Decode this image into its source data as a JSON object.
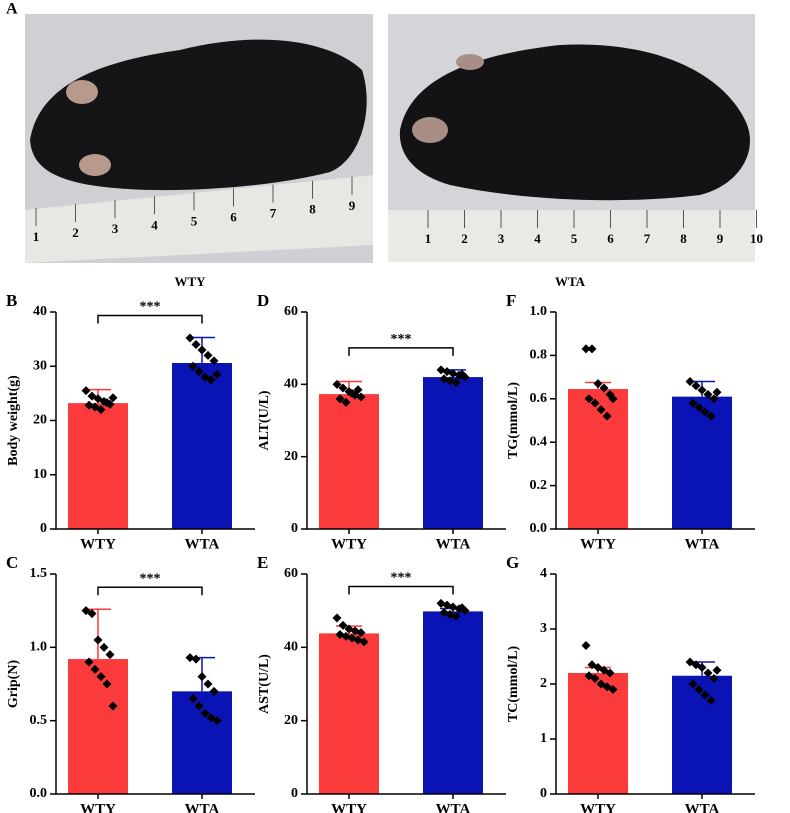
{
  "panel_a": {
    "label": "A",
    "photos": [
      {
        "caption": "WTY",
        "ruler": [
          "1",
          "2",
          "3",
          "4",
          "5",
          "6",
          "7",
          "8",
          "9"
        ]
      },
      {
        "caption": "WTA",
        "ruler": [
          "1",
          "2",
          "3",
          "4",
          "5",
          "6",
          "7",
          "8",
          "9",
          "10"
        ]
      }
    ]
  },
  "chart_data": [
    {
      "type": "bar",
      "label": "B",
      "ylabel": "Body weight(g)",
      "categories": [
        "WTY",
        "WTA"
      ],
      "values": [
        23.2,
        30.6
      ],
      "errors": [
        2.5,
        4.7
      ],
      "colors": [
        "#fb3a3c",
        "#0a14b4"
      ],
      "points": [
        [
          25.5,
          24.5,
          24,
          23.5,
          23,
          22.8,
          22.5,
          22,
          23.3,
          24.2
        ],
        [
          35.2,
          34,
          33,
          32,
          31,
          30,
          29,
          28,
          27.5,
          28.5
        ]
      ],
      "significance": "***",
      "ylim": [
        0,
        40
      ],
      "yticks": [
        0,
        10,
        20,
        30,
        40
      ]
    },
    {
      "type": "bar",
      "label": "D",
      "ylabel": "ALT(U/L)",
      "categories": [
        "WTY",
        "WTA"
      ],
      "values": [
        37.3,
        42
      ],
      "errors": [
        3.5,
        2
      ],
      "colors": [
        "#fb3a3c",
        "#0a14b4"
      ],
      "points": [
        [
          40,
          39,
          38,
          37,
          36.5,
          36,
          35,
          37.5,
          38.5
        ],
        [
          44,
          43.5,
          43,
          42.5,
          42,
          41.5,
          41,
          40.5,
          42.8
        ]
      ],
      "significance": "***",
      "ylim": [
        0,
        60
      ],
      "yticks": [
        0,
        20,
        40,
        60
      ]
    },
    {
      "type": "bar",
      "label": "F",
      "ylabel": "TG(mmol/L)",
      "categories": [
        "WTY",
        "WTA"
      ],
      "values": [
        0.645,
        0.61
      ],
      "errors": [
        0.03,
        0.07
      ],
      "colors": [
        "#fb3a3c",
        "#0a14b4"
      ],
      "points": [
        [
          0.83,
          0.83,
          0.67,
          0.65,
          0.62,
          0.6,
          0.58,
          0.55,
          0.52,
          0.6
        ],
        [
          0.68,
          0.66,
          0.64,
          0.62,
          0.6,
          0.58,
          0.56,
          0.54,
          0.52,
          0.63
        ]
      ],
      "ylim": [
        0,
        1
      ],
      "yticks": [
        {
          "value": 0,
          "label": "0.0"
        },
        0.2,
        0.4,
        0.6,
        0.8,
        {
          "value": 1,
          "label": "1.0"
        }
      ]
    },
    {
      "type": "bar",
      "label": "C",
      "ylabel": "Grip(N)",
      "categories": [
        "WTY",
        "WTA"
      ],
      "values": [
        0.92,
        0.7
      ],
      "errors": [
        0.34,
        0.23
      ],
      "colors": [
        "#fb3a3c",
        "#0a14b4"
      ],
      "points": [
        [
          1.25,
          1.23,
          1.05,
          1.0,
          0.95,
          0.9,
          0.85,
          0.8,
          0.75,
          0.6
        ],
        [
          0.93,
          0.92,
          0.8,
          0.75,
          0.7,
          0.65,
          0.6,
          0.55,
          0.52,
          0.5
        ]
      ],
      "significance": "***",
      "ylim": [
        0,
        1.5
      ],
      "yticks": [
        {
          "value": 0,
          "label": "0.0"
        },
        0.5,
        {
          "value": 1,
          "label": "1.0"
        },
        1.5
      ]
    },
    {
      "type": "bar",
      "label": "E",
      "ylabel": "AST(U/L)",
      "categories": [
        "WTY",
        "WTA"
      ],
      "values": [
        43.8,
        49.8
      ],
      "errors": [
        2,
        0.8
      ],
      "colors": [
        "#fb3a3c",
        "#0a14b4"
      ],
      "points": [
        [
          48,
          46,
          45,
          44.5,
          44,
          43.5,
          43,
          42.5,
          42,
          41.5
        ],
        [
          52,
          51.5,
          51,
          50.5,
          50,
          49.5,
          49,
          48.5,
          50.8
        ]
      ],
      "significance": "***",
      "ylim": [
        0,
        60
      ],
      "yticks": [
        0,
        20,
        40,
        60
      ]
    },
    {
      "type": "bar",
      "label": "G",
      "ylabel": "TC(mmol/L)",
      "categories": [
        "WTY",
        "WTA"
      ],
      "values": [
        2.2,
        2.15
      ],
      "errors": [
        0.1,
        0.25
      ],
      "colors": [
        "#fb3a3c",
        "#0a14b4"
      ],
      "points": [
        [
          2.7,
          2.35,
          2.3,
          2.25,
          2.2,
          2.15,
          2.1,
          2.0,
          1.95,
          1.9
        ],
        [
          2.4,
          2.35,
          2.3,
          2.2,
          2.1,
          2.0,
          1.9,
          1.8,
          1.7,
          2.25
        ]
      ],
      "ylim": [
        0,
        4
      ],
      "yticks": [
        0,
        1,
        2,
        3,
        4
      ]
    }
  ]
}
